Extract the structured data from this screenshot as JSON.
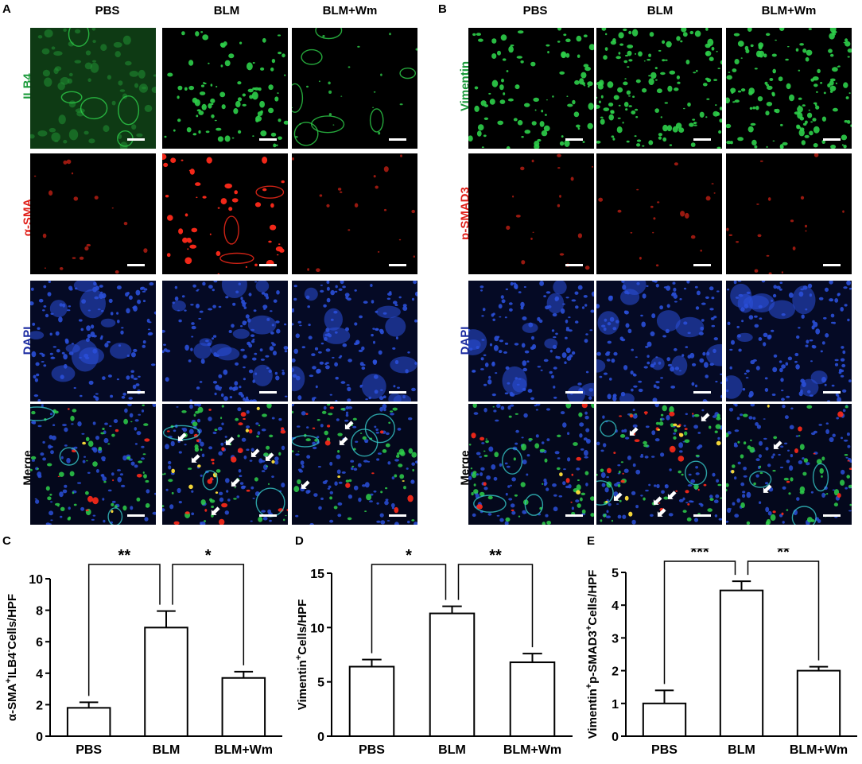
{
  "panels": {
    "A": {
      "letter": "A",
      "columns": [
        "PBS",
        "BLM",
        "BLM+Wm"
      ],
      "rows": [
        {
          "label": "ILB4",
          "color": "#1a9a3a",
          "channel": "green"
        },
        {
          "label": "α-SMA",
          "color": "#e0201a",
          "channel": "red"
        },
        {
          "label": "DAPI",
          "color": "#1a2aa0",
          "channel": "blue"
        },
        {
          "label": "Merge",
          "color": "#000000",
          "channel": "merge"
        }
      ]
    },
    "B": {
      "letter": "B",
      "columns": [
        "PBS",
        "BLM",
        "BLM+Wm"
      ],
      "rows": [
        {
          "label": "Vimentin",
          "color": "#1a9a3a",
          "channel": "green"
        },
        {
          "label": "p-SMAD3",
          "color": "#e0201a",
          "channel": "red"
        },
        {
          "label": "DAPI",
          "color": "#1a2aa0",
          "channel": "blue"
        },
        {
          "label": "Merge",
          "color": "#000000",
          "channel": "merge"
        }
      ]
    }
  },
  "chart_data": [
    {
      "letter": "C",
      "type": "bar",
      "categories": [
        "PBS",
        "BLM",
        "BLM+Wm"
      ],
      "values": [
        1.8,
        6.9,
        3.7
      ],
      "errors": [
        0.35,
        1.05,
        0.4
      ],
      "ylabel_parts": [
        "α-SMA",
        "+",
        "ILB4",
        "-",
        "Cells/HPF"
      ],
      "ylim": [
        0,
        10
      ],
      "yticks": [
        "0",
        "2",
        "4",
        "6",
        "8",
        "10"
      ],
      "significance": [
        {
          "from": 0,
          "to": 1,
          "label": "**"
        },
        {
          "from": 1,
          "to": 2,
          "label": "*"
        }
      ]
    },
    {
      "letter": "D",
      "type": "bar",
      "categories": [
        "PBS",
        "BLM",
        "BLM+Wm"
      ],
      "values": [
        6.4,
        11.3,
        6.8
      ],
      "errors": [
        0.65,
        0.65,
        0.8
      ],
      "ylabel_parts": [
        "Vimentin",
        "+",
        "Cells/HPF"
      ],
      "ylim": [
        0,
        15
      ],
      "yticks": [
        "0",
        "5",
        "10",
        "15"
      ],
      "significance": [
        {
          "from": 0,
          "to": 1,
          "label": "*"
        },
        {
          "from": 1,
          "to": 2,
          "label": "**"
        }
      ]
    },
    {
      "letter": "E",
      "type": "bar",
      "categories": [
        "PBS",
        "BLM",
        "BLM+Wm"
      ],
      "values": [
        1.0,
        4.45,
        2.0
      ],
      "errors": [
        0.4,
        0.28,
        0.12
      ],
      "ylabel_parts": [
        "Vimentin",
        "+",
        "p-SMAD3",
        "+",
        "Cells/HPF"
      ],
      "ylim": [
        0,
        5
      ],
      "yticks": [
        "0",
        "1",
        "2",
        "3",
        "4",
        "5"
      ],
      "significance": [
        {
          "from": 0,
          "to": 1,
          "label": "***"
        },
        {
          "from": 1,
          "to": 2,
          "label": "**"
        }
      ]
    }
  ]
}
